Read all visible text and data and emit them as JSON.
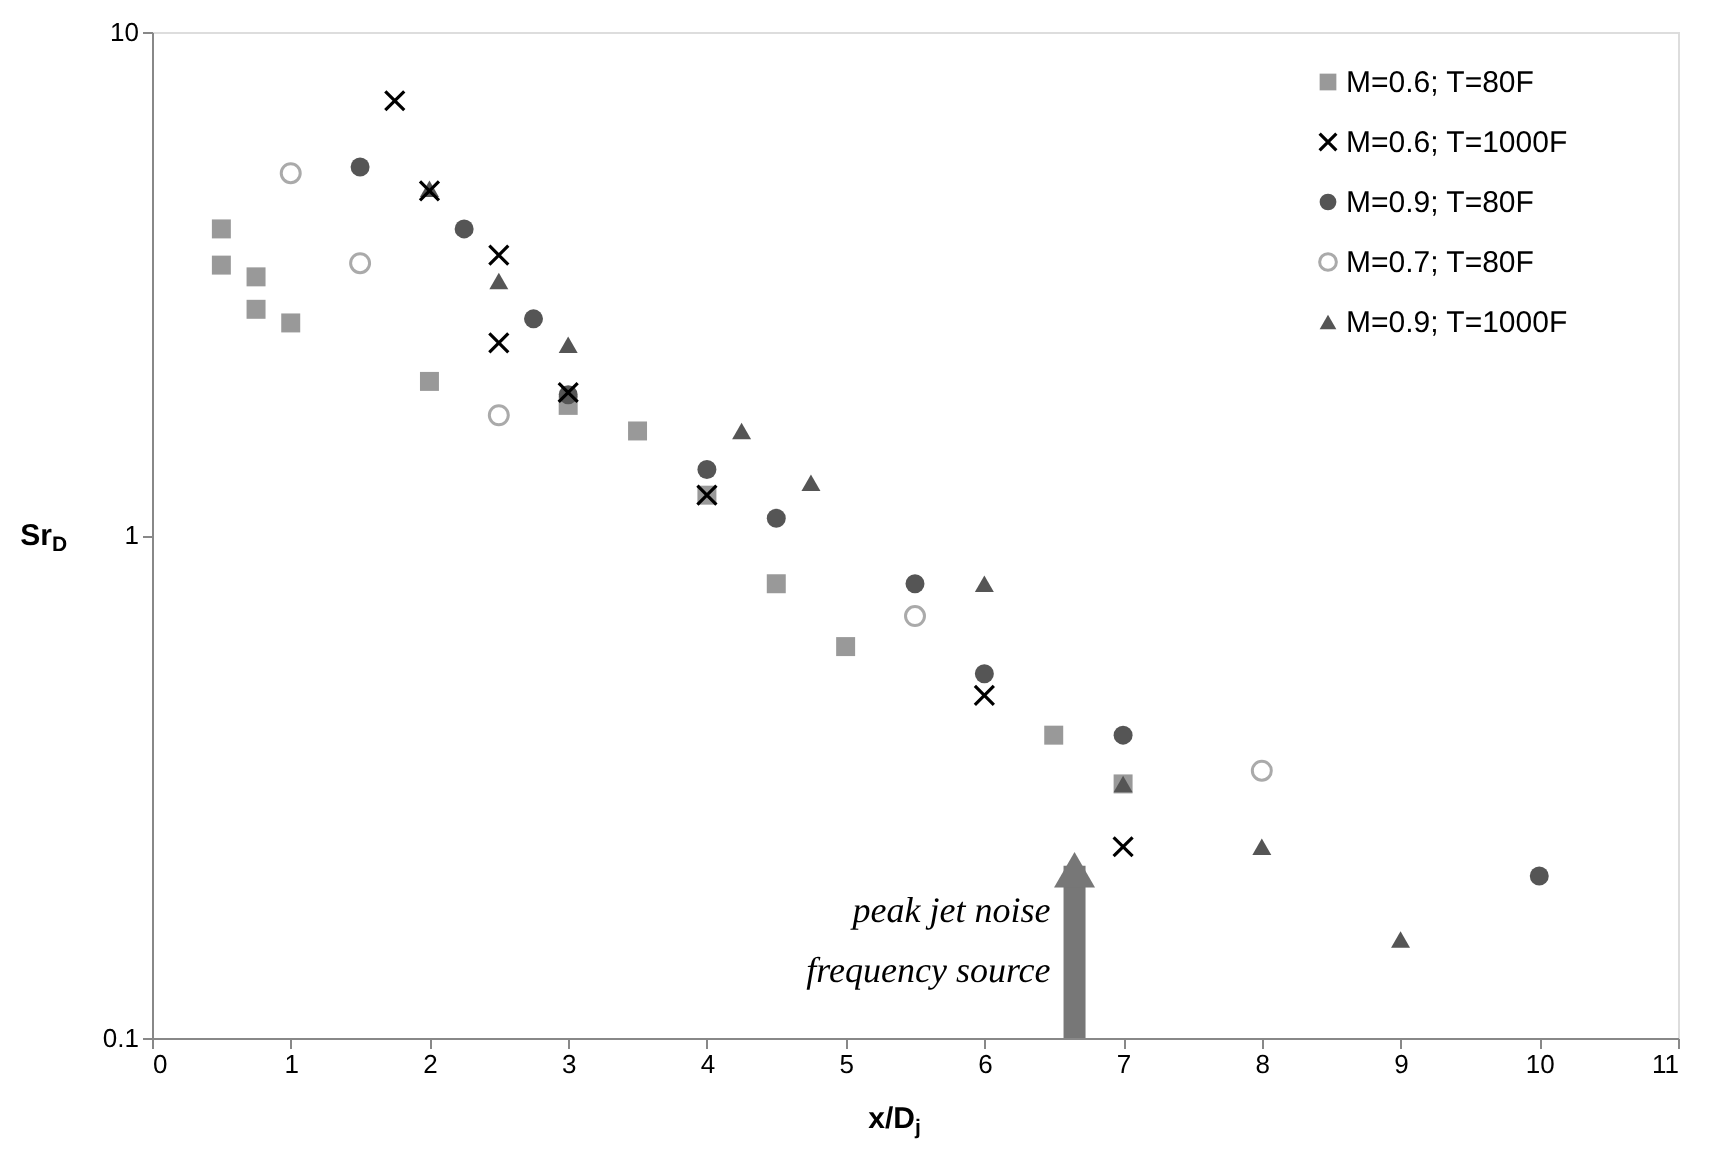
{
  "chart_data": {
    "type": "scatter",
    "xlabel": "x/D$_{j}$",
    "ylabel": "Sr$_{D}$",
    "log": "y",
    "xlim": [
      0,
      11
    ],
    "xticks": [
      0,
      1,
      2,
      3,
      4,
      5,
      6,
      7,
      8,
      9,
      10,
      11
    ],
    "ylim": [
      0.1,
      10
    ],
    "yticks": [
      0.1,
      1,
      10
    ],
    "grid": false,
    "legend": "top right",
    "series": [
      {
        "name": "M=0.6; T=80F",
        "color": "#999999",
        "marker": "square",
        "x": [
          0.5,
          0.5,
          0.75,
          0.75,
          1,
          2,
          3,
          3.5,
          4,
          4.5,
          5,
          6.5,
          7
        ],
        "values": [
          4.06,
          3.44,
          3.26,
          2.81,
          2.64,
          2.02,
          1.81,
          1.61,
          1.2,
          0.8,
          0.6,
          0.4,
          0.32
        ]
      },
      {
        "name": "M=0.6; T=1000F",
        "color": "#000000",
        "marker": "cross",
        "x": [
          1.75,
          2,
          2.5,
          2.5,
          3,
          4,
          6,
          7
        ],
        "values": [
          7.3,
          4.83,
          3.6,
          2.41,
          1.92,
          1.2,
          0.48,
          0.24
        ]
      },
      {
        "name": "M=0.9; T=80F",
        "color": "#555555",
        "marker": "circle",
        "x": [
          1.5,
          2.25,
          2.75,
          3,
          4,
          4.5,
          5.5,
          6,
          7,
          10
        ],
        "values": [
          5.39,
          4.06,
          2.69,
          1.9,
          1.35,
          1.08,
          0.8,
          0.53,
          0.4,
          0.21
        ]
      },
      {
        "name": "M=0.7; T=80F",
        "color": "#aaaaaa",
        "marker": "open circle",
        "x": [
          1,
          1.5,
          2.5,
          5.5,
          8
        ],
        "values": [
          5.24,
          3.47,
          1.73,
          0.69,
          0.34
        ]
      },
      {
        "name": "M=0.9; T=1000F",
        "color": "#555555",
        "marker": "triangle",
        "x": [
          2,
          2.5,
          3,
          4.25,
          4.75,
          6,
          7,
          8,
          9
        ],
        "values": [
          4.88,
          3.2,
          2.39,
          1.61,
          1.27,
          0.8,
          0.32,
          0.24,
          0.157
        ]
      }
    ],
    "annotations": [
      {
        "text": "peak jet noise\nfrequency source",
        "x": 6.65,
        "y": 0.22
      }
    ]
  }
}
